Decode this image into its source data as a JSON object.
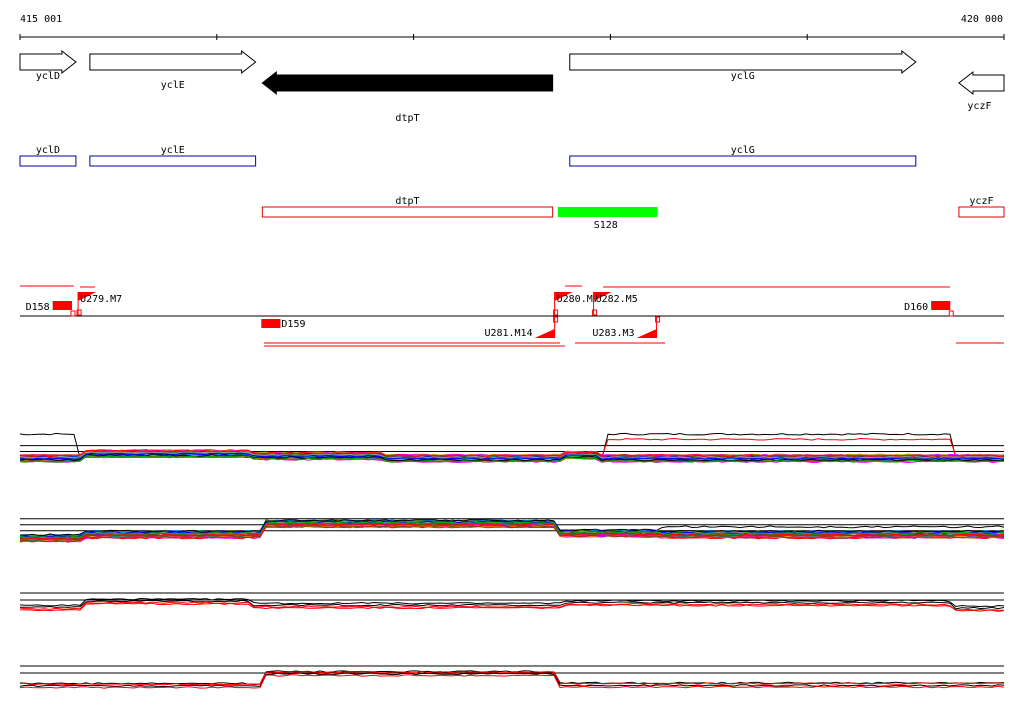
{
  "coords": {
    "start_label": "415 001",
    "end_label": "420 000",
    "start": 415001,
    "end": 420000
  },
  "genes": [
    {
      "name": "yclD",
      "start": 415001,
      "end": 415285,
      "strand": "+",
      "fill": "white"
    },
    {
      "name": "yclE",
      "start": 415356,
      "end": 416198,
      "strand": "+",
      "fill": "white"
    },
    {
      "name": "dtpT",
      "start": 416232,
      "end": 417707,
      "strand": "-",
      "fill": "black"
    },
    {
      "name": "yclG",
      "start": 417794,
      "end": 419552,
      "strand": "+",
      "fill": "white"
    },
    {
      "name": "yczF",
      "start": 419771,
      "end": 420000,
      "strand": "-",
      "fill": "white"
    }
  ],
  "plus_boxes": [
    {
      "name": "yclD",
      "start": 415001,
      "end": 415285
    },
    {
      "name": "yclE",
      "start": 415356,
      "end": 416198
    },
    {
      "name": "yclG",
      "start": 417794,
      "end": 419552
    }
  ],
  "minus_boxes": [
    {
      "name": "dtpT",
      "start": 416232,
      "end": 417707
    },
    {
      "name": "yczF",
      "start": 419771,
      "end": 420000
    }
  ],
  "s_feature": {
    "name": "S128",
    "start": 417733,
    "end": 418240,
    "color": "#00ff00"
  },
  "blocks_upper": [
    {
      "label": "D158",
      "start": 415167,
      "end": 415265
    },
    {
      "label": "D160",
      "start": 419630,
      "end": 419727
    }
  ],
  "block_lower": {
    "label": "D159",
    "start": 416227,
    "end": 416324
  },
  "flags_upper": [
    {
      "label": "U279.M7",
      "pos": 415296
    },
    {
      "label": "U280.M7",
      "pos": 417717
    },
    {
      "label": "U282.M5",
      "pos": 417915
    }
  ],
  "flags_lower": [
    {
      "label": "U281.M14",
      "pos": 417717
    },
    {
      "label": "U283.M3",
      "pos": 418235
    }
  ],
  "track_labels": {
    "upper": "",
    "lower": ""
  },
  "chart_data": {
    "type": "line",
    "xlabel": "",
    "ylabel": "",
    "xlim": [
      415001,
      420000
    ],
    "panels": [
      {
        "baselines": [
          0,
          0.5,
          2
        ],
        "ylim": [
          -1,
          4
        ]
      },
      {
        "baselines": [
          0,
          0.5,
          2
        ],
        "ylim": [
          -1,
          4
        ]
      },
      {
        "baselines": [
          0,
          1.5
        ],
        "ylim": [
          -1,
          3
        ]
      },
      {
        "baselines": [
          0,
          1.5
        ],
        "ylim": [
          -1,
          3
        ]
      }
    ],
    "series_colors": [
      "#000000",
      "#ff0000",
      "#0000ff",
      "#00aa00",
      "#ff00ff",
      "#00cccc",
      "#888800",
      "#ff8800",
      "#8800ff",
      "#008888",
      "#aaaa00",
      "#ff0088",
      "#446600",
      "#0088ff",
      "#884400",
      "#999999"
    ]
  }
}
